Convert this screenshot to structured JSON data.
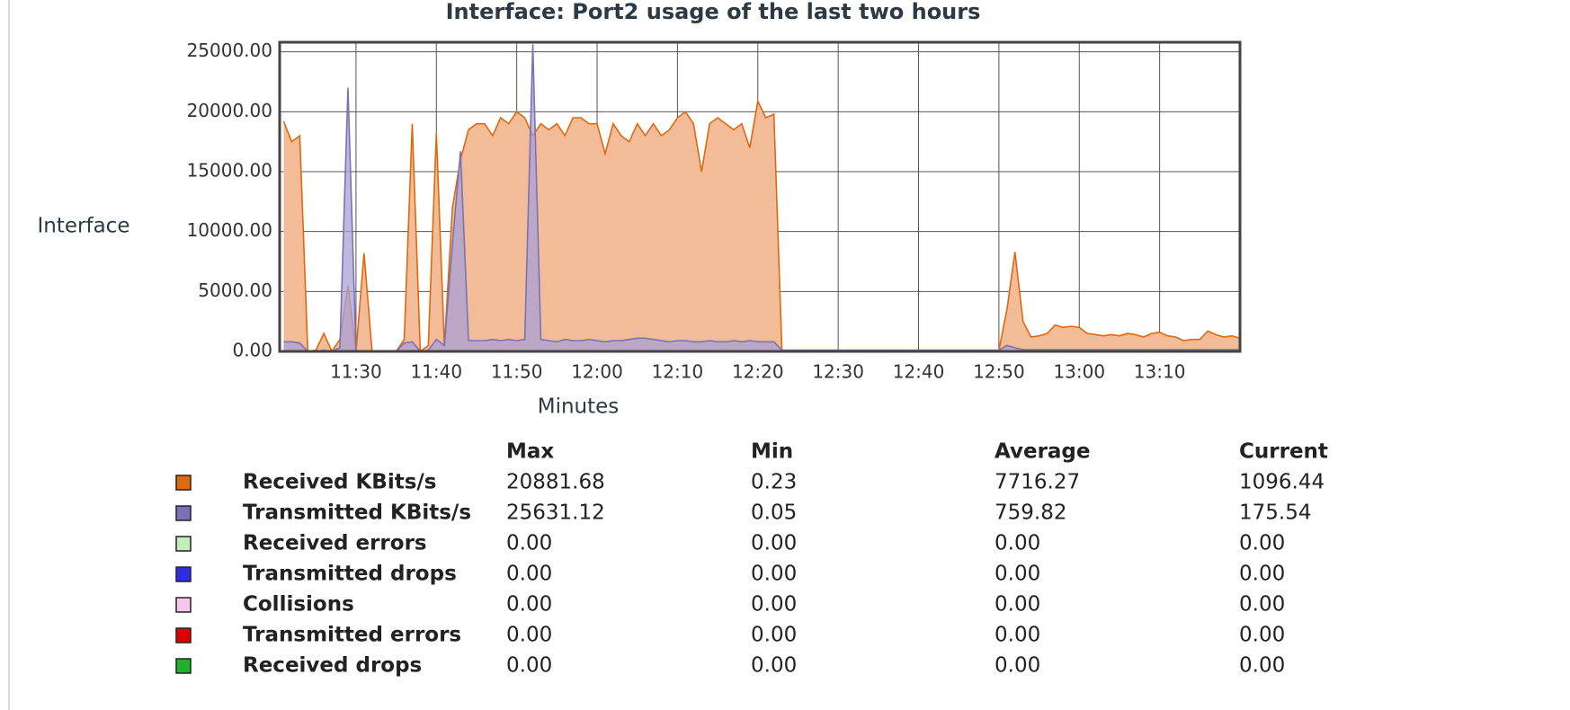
{
  "chart_data": {
    "type": "area",
    "title": "Interface: Port2 usage of the last two hours",
    "y_label": "Interface",
    "x_label": "Minutes",
    "xlim": [
      680.5,
      800
    ],
    "ylim": [
      0,
      25800
    ],
    "xticks": [
      {
        "value": 690,
        "label": "11:30"
      },
      {
        "value": 700,
        "label": "11:40"
      },
      {
        "value": 710,
        "label": "11:50"
      },
      {
        "value": 720,
        "label": "12:00"
      },
      {
        "value": 730,
        "label": "12:10"
      },
      {
        "value": 740,
        "label": "12:20"
      },
      {
        "value": 750,
        "label": "12:30"
      },
      {
        "value": 760,
        "label": "12:40"
      },
      {
        "value": 770,
        "label": "12:50"
      },
      {
        "value": 780,
        "label": "13:00"
      },
      {
        "value": 790,
        "label": "13:10"
      }
    ],
    "yticks": [
      {
        "value": 0,
        "label": "0.00"
      },
      {
        "value": 5000,
        "label": "5000.00"
      },
      {
        "value": 10000,
        "label": "10000.00"
      },
      {
        "value": 15000,
        "label": "15000.00"
      },
      {
        "value": 20000,
        "label": "20000.00"
      },
      {
        "value": 25000,
        "label": "25000.00"
      }
    ],
    "grid": true,
    "x": [
      681,
      682,
      683,
      684,
      685,
      686,
      687,
      688,
      689,
      690,
      691,
      692,
      693,
      694,
      695,
      696,
      697,
      698,
      699,
      700,
      701,
      702,
      703,
      704,
      705,
      706,
      707,
      708,
      709,
      710,
      711,
      712,
      713,
      714,
      715,
      716,
      717,
      718,
      719,
      720,
      721,
      722,
      723,
      724,
      725,
      726,
      727,
      728,
      729,
      730,
      731,
      732,
      733,
      734,
      735,
      736,
      737,
      738,
      739,
      740,
      741,
      742,
      743,
      744,
      745,
      746,
      747,
      748,
      749,
      750,
      751,
      752,
      753,
      754,
      755,
      756,
      757,
      758,
      759,
      760,
      761,
      762,
      763,
      764,
      765,
      766,
      767,
      768,
      769,
      770,
      771,
      772,
      773,
      774,
      775,
      776,
      777,
      778,
      779,
      780,
      781,
      782,
      783,
      784,
      785,
      786,
      787,
      788,
      789,
      790,
      791,
      792,
      793,
      794,
      795,
      796,
      797,
      798,
      799,
      800
    ],
    "stats_columns": [
      "Max",
      "Min",
      "Average",
      "Current"
    ],
    "series": [
      {
        "name": "Received KBits/s",
        "color": "#e0680f",
        "fill": "#f2bc98",
        "stats": [
          "20881.68",
          "0.23",
          "7716.27",
          "1096.44"
        ],
        "values": [
          19200,
          17500,
          18000,
          0,
          100,
          1500,
          0,
          1000,
          5500,
          0,
          8200,
          0,
          0,
          0,
          0,
          1000,
          19000,
          0,
          500,
          18200,
          500,
          12000,
          16000,
          18500,
          19000,
          19000,
          18000,
          19500,
          19000,
          20000,
          19500,
          18000,
          19000,
          18500,
          19000,
          18000,
          19500,
          19500,
          19000,
          19000,
          16500,
          19000,
          18000,
          17500,
          19000,
          18000,
          19000,
          18000,
          18500,
          19500,
          20000,
          19000,
          15000,
          19000,
          19500,
          19000,
          18500,
          19000,
          17000,
          20880,
          19500,
          19800,
          100,
          100,
          100,
          100,
          100,
          100,
          100,
          100,
          100,
          100,
          100,
          100,
          100,
          100,
          100,
          100,
          100,
          100,
          100,
          100,
          100,
          100,
          100,
          100,
          100,
          100,
          100,
          100,
          3500,
          8300,
          2500,
          1200,
          1300,
          1500,
          2200,
          2000,
          2100,
          2000,
          1500,
          1400,
          1300,
          1400,
          1300,
          1500,
          1400,
          1200,
          1500,
          1600,
          1300,
          1200,
          900,
          1000,
          1000,
          1700,
          1400,
          1200,
          1300,
          1100
        ]
      },
      {
        "name": "Transmitted KBits/s",
        "color": "#7a72b8",
        "fill": "#a9a2d6",
        "stats": [
          "25631.12",
          "0.05",
          "759.82",
          "175.54"
        ],
        "values": [
          800,
          800,
          700,
          0,
          0,
          100,
          0,
          300,
          22000,
          0,
          0,
          0,
          0,
          0,
          0,
          700,
          800,
          0,
          100,
          1000,
          500,
          9000,
          16700,
          900,
          900,
          900,
          1000,
          900,
          1000,
          900,
          1000,
          25631,
          1000,
          900,
          800,
          1000,
          900,
          900,
          1000,
          900,
          800,
          900,
          900,
          1000,
          1100,
          1100,
          1000,
          900,
          800,
          900,
          900,
          800,
          800,
          900,
          800,
          800,
          900,
          800,
          900,
          800,
          800,
          800,
          100,
          100,
          100,
          100,
          100,
          100,
          100,
          100,
          100,
          100,
          100,
          100,
          100,
          100,
          100,
          100,
          100,
          100,
          100,
          100,
          100,
          100,
          100,
          100,
          100,
          100,
          100,
          100,
          500,
          300,
          150,
          150,
          150,
          150,
          150,
          150,
          150,
          150,
          150,
          150,
          150,
          150,
          150,
          150,
          150,
          150,
          150,
          150,
          150,
          150,
          150,
          150,
          150,
          150,
          150,
          150,
          150,
          150
        ]
      },
      {
        "name": "Received errors",
        "color": "#c4ecbd",
        "stats": [
          "0.00",
          "0.00",
          "0.00",
          "0.00"
        ],
        "values": [
          0,
          0,
          0,
          0,
          0,
          0,
          0,
          0,
          0,
          0,
          0,
          0,
          0,
          0,
          0,
          0,
          0,
          0,
          0,
          0,
          0,
          0,
          0,
          0,
          0,
          0,
          0,
          0,
          0,
          0,
          0,
          0,
          0,
          0,
          0,
          0,
          0,
          0,
          0,
          0,
          0,
          0,
          0,
          0,
          0,
          0,
          0,
          0,
          0,
          0,
          0,
          0,
          0,
          0,
          0,
          0,
          0,
          0,
          0,
          0,
          0,
          0,
          0,
          0,
          0,
          0,
          0,
          0,
          0,
          0,
          0,
          0,
          0,
          0,
          0,
          0,
          0,
          0,
          0,
          0,
          0,
          0,
          0,
          0,
          0,
          0,
          0,
          0,
          0,
          0,
          0,
          0,
          0,
          0,
          0,
          0,
          0,
          0,
          0,
          0,
          0,
          0,
          0,
          0,
          0,
          0,
          0,
          0,
          0,
          0,
          0,
          0,
          0,
          0,
          0,
          0,
          0,
          0,
          0,
          0
        ]
      },
      {
        "name": "Transmitted drops",
        "color": "#2e2ee0",
        "stats": [
          "0.00",
          "0.00",
          "0.00",
          "0.00"
        ],
        "values": [
          0,
          0,
          0,
          0,
          0,
          0,
          0,
          0,
          0,
          0,
          0,
          0,
          0,
          0,
          0,
          0,
          0,
          0,
          0,
          0,
          0,
          0,
          0,
          0,
          0,
          0,
          0,
          0,
          0,
          0,
          0,
          0,
          0,
          0,
          0,
          0,
          0,
          0,
          0,
          0,
          0,
          0,
          0,
          0,
          0,
          0,
          0,
          0,
          0,
          0,
          0,
          0,
          0,
          0,
          0,
          0,
          0,
          0,
          0,
          0,
          0,
          0,
          0,
          0,
          0,
          0,
          0,
          0,
          0,
          0,
          0,
          0,
          0,
          0,
          0,
          0,
          0,
          0,
          0,
          0,
          0,
          0,
          0,
          0,
          0,
          0,
          0,
          0,
          0,
          0,
          0,
          0,
          0,
          0,
          0,
          0,
          0,
          0,
          0,
          0,
          0,
          0,
          0,
          0,
          0,
          0,
          0,
          0,
          0,
          0,
          0,
          0,
          0,
          0,
          0,
          0,
          0,
          0,
          0,
          0
        ]
      },
      {
        "name": "Collisions",
        "color": "#f7c6ef",
        "stats": [
          "0.00",
          "0.00",
          "0.00",
          "0.00"
        ],
        "values": [
          0,
          0,
          0,
          0,
          0,
          0,
          0,
          0,
          0,
          0,
          0,
          0,
          0,
          0,
          0,
          0,
          0,
          0,
          0,
          0,
          0,
          0,
          0,
          0,
          0,
          0,
          0,
          0,
          0,
          0,
          0,
          0,
          0,
          0,
          0,
          0,
          0,
          0,
          0,
          0,
          0,
          0,
          0,
          0,
          0,
          0,
          0,
          0,
          0,
          0,
          0,
          0,
          0,
          0,
          0,
          0,
          0,
          0,
          0,
          0,
          0,
          0,
          0,
          0,
          0,
          0,
          0,
          0,
          0,
          0,
          0,
          0,
          0,
          0,
          0,
          0,
          0,
          0,
          0,
          0,
          0,
          0,
          0,
          0,
          0,
          0,
          0,
          0,
          0,
          0,
          0,
          0,
          0,
          0,
          0,
          0,
          0,
          0,
          0,
          0,
          0,
          0,
          0,
          0,
          0,
          0,
          0,
          0,
          0,
          0,
          0,
          0,
          0,
          0,
          0,
          0,
          0,
          0,
          0,
          0
        ]
      },
      {
        "name": "Transmitted errors",
        "color": "#e00000",
        "stats": [
          "0.00",
          "0.00",
          "0.00",
          "0.00"
        ],
        "values": [
          0,
          0,
          0,
          0,
          0,
          0,
          0,
          0,
          0,
          0,
          0,
          0,
          0,
          0,
          0,
          0,
          0,
          0,
          0,
          0,
          0,
          0,
          0,
          0,
          0,
          0,
          0,
          0,
          0,
          0,
          0,
          0,
          0,
          0,
          0,
          0,
          0,
          0,
          0,
          0,
          0,
          0,
          0,
          0,
          0,
          0,
          0,
          0,
          0,
          0,
          0,
          0,
          0,
          0,
          0,
          0,
          0,
          0,
          0,
          0,
          0,
          0,
          0,
          0,
          0,
          0,
          0,
          0,
          0,
          0,
          0,
          0,
          0,
          0,
          0,
          0,
          0,
          0,
          0,
          0,
          0,
          0,
          0,
          0,
          0,
          0,
          0,
          0,
          0,
          0,
          0,
          0,
          0,
          0,
          0,
          0,
          0,
          0,
          0,
          0,
          0,
          0,
          0,
          0,
          0,
          0,
          0,
          0,
          0,
          0,
          0,
          0,
          0,
          0,
          0,
          0,
          0,
          0,
          0,
          0
        ]
      },
      {
        "name": "Received drops",
        "color": "#1fb02e",
        "stats": [
          "0.00",
          "0.00",
          "0.00",
          "0.00"
        ],
        "values": [
          0,
          0,
          0,
          0,
          0,
          0,
          0,
          0,
          0,
          0,
          0,
          0,
          0,
          0,
          0,
          0,
          0,
          0,
          0,
          0,
          0,
          0,
          0,
          0,
          0,
          0,
          0,
          0,
          0,
          0,
          0,
          0,
          0,
          0,
          0,
          0,
          0,
          0,
          0,
          0,
          0,
          0,
          0,
          0,
          0,
          0,
          0,
          0,
          0,
          0,
          0,
          0,
          0,
          0,
          0,
          0,
          0,
          0,
          0,
          0,
          0,
          0,
          0,
          0,
          0,
          0,
          0,
          0,
          0,
          0,
          0,
          0,
          0,
          0,
          0,
          0,
          0,
          0,
          0,
          0,
          0,
          0,
          0,
          0,
          0,
          0,
          0,
          0,
          0,
          0,
          0,
          0,
          0,
          0,
          0,
          0,
          0,
          0,
          0,
          0,
          0,
          0,
          0,
          0,
          0,
          0,
          0,
          0,
          0,
          0,
          0,
          0,
          0,
          0,
          0,
          0,
          0,
          0,
          0,
          0
        ]
      }
    ]
  }
}
